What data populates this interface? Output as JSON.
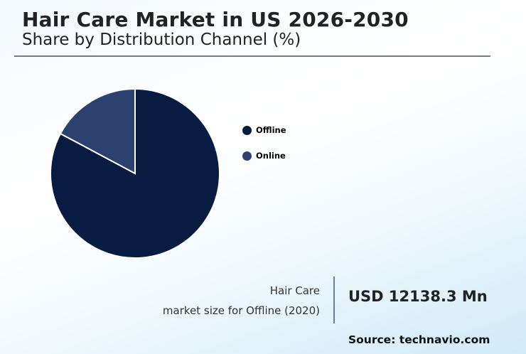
{
  "header": {
    "title": "Hair Care Market in US 2026-2030",
    "subtitle": "Share by Distribution Channel (%)"
  },
  "legend": [
    {
      "label": "Offline",
      "color": "#081b41"
    },
    {
      "label": "Online",
      "color": "#2c4170"
    }
  ],
  "kpi": {
    "label_line1": "Hair Care",
    "label_line2": "market size for Offline (2020)",
    "value": "USD 12138.3 Mn"
  },
  "source": "Source: technavio.com",
  "chart_data": {
    "type": "pie",
    "title": "Hair Care Market in US 2026-2030",
    "subtitle": "Share by Distribution Channel (%)",
    "categories": [
      "Offline",
      "Online"
    ],
    "values": [
      82.8,
      17.2
    ],
    "colors": [
      "#081b41",
      "#2c4170"
    ],
    "start_angle": "12 o'clock, Offline clockwise",
    "legend_position": "right",
    "annotation": "Hair Care market size for Offline (2020): USD 12138.3 Mn"
  }
}
